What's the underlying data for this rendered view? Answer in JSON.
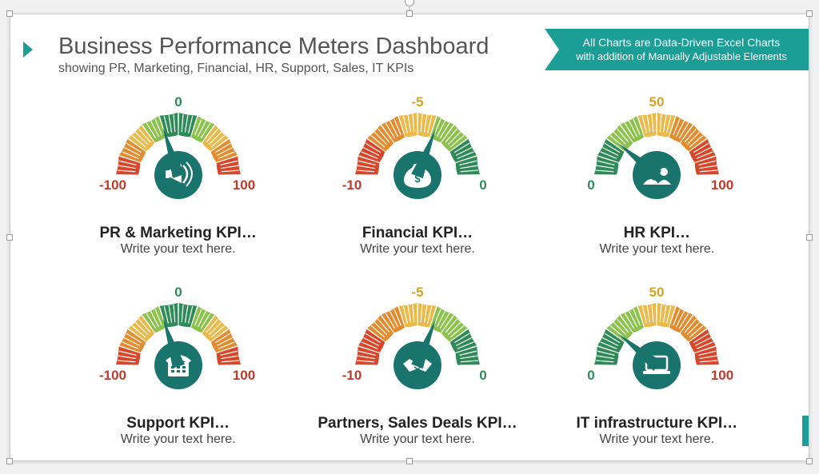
{
  "header": {
    "title": "Business Performance Meters Dashboard",
    "subtitle": "showing PR, Marketing, Financial, HR, Support, Sales, IT KPIs"
  },
  "ribbon": {
    "line1": "All Charts are Data-Driven Excel Charts",
    "line2": "with addition of Manually Adjustable Elements"
  },
  "palette": {
    "teal": "#1a746e",
    "seg_red": "#d9472b",
    "seg_orange": "#e38b2f",
    "seg_yellow": "#e9b949",
    "seg_ltgreen": "#8bc34a",
    "seg_green": "#2e8b57",
    "label_red": "#c0392b",
    "label_orange": "#cf7a1f",
    "label_yellow": "#d4a420",
    "label_green": "#2e8b57"
  },
  "gauges": [
    {
      "id": "pr-marketing",
      "title": "PR & Marketing KPI…",
      "subtitle": "Write your text here.",
      "min": -100,
      "max": 100,
      "top_label": "0",
      "top_label_color": "#2e8b57",
      "left_label": "-100",
      "left_label_color": "#c0392b",
      "right_label": "100",
      "right_label_color": "#c0392b",
      "needle_pct": 0.4,
      "segments_lr": [
        "red",
        "orange",
        "yellow",
        "ltgreen",
        "green",
        "green",
        "ltgreen",
        "yellow",
        "orange",
        "red"
      ],
      "icon": "megaphone"
    },
    {
      "id": "financial",
      "title": "Financial KPI…",
      "subtitle": "Write your text here.",
      "min": -10,
      "max": 0,
      "top_label": "-5",
      "top_label_color": "#d4a420",
      "left_label": "-10",
      "left_label_color": "#c0392b",
      "right_label": "0",
      "right_label_color": "#2e8b57",
      "needle_pct": 0.62,
      "segments_lr": [
        "red",
        "red",
        "orange",
        "orange",
        "yellow",
        "yellow",
        "ltgreen",
        "ltgreen",
        "green",
        "green"
      ],
      "icon": "moneybag"
    },
    {
      "id": "hr",
      "title": "HR KPI…",
      "subtitle": "Write your text here.",
      "min": 0,
      "max": 100,
      "top_label": "50",
      "top_label_color": "#d4a420",
      "left_label": "0",
      "left_label_color": "#2e8b57",
      "right_label": "100",
      "right_label_color": "#c0392b",
      "needle_pct": 0.22,
      "segments_lr": [
        "green",
        "green",
        "ltgreen",
        "ltgreen",
        "yellow",
        "yellow",
        "orange",
        "orange",
        "red",
        "red"
      ],
      "icon": "people"
    },
    {
      "id": "support",
      "title": "Support KPI…",
      "subtitle": "Write your text here.",
      "min": -100,
      "max": 100,
      "top_label": "0",
      "top_label_color": "#2e8b57",
      "left_label": "-100",
      "left_label_color": "#c0392b",
      "right_label": "100",
      "right_label_color": "#c0392b",
      "needle_pct": 0.4,
      "segments_lr": [
        "red",
        "orange",
        "yellow",
        "ltgreen",
        "green",
        "green",
        "ltgreen",
        "yellow",
        "orange",
        "red"
      ],
      "icon": "phone"
    },
    {
      "id": "partners-sales",
      "title": "Partners, Sales Deals KPI…",
      "subtitle": "Write your text here.",
      "min": -10,
      "max": 0,
      "top_label": "-5",
      "top_label_color": "#d4a420",
      "left_label": "-10",
      "left_label_color": "#c0392b",
      "right_label": "0",
      "right_label_color": "#2e8b57",
      "needle_pct": 0.62,
      "segments_lr": [
        "red",
        "red",
        "orange",
        "orange",
        "yellow",
        "yellow",
        "ltgreen",
        "ltgreen",
        "green",
        "green"
      ],
      "icon": "handshake"
    },
    {
      "id": "it",
      "title": "IT infrastructure KPI…",
      "subtitle": "Write your text here.",
      "min": 0,
      "max": 100,
      "top_label": "50",
      "top_label_color": "#d4a420",
      "left_label": "0",
      "left_label_color": "#2e8b57",
      "right_label": "100",
      "right_label_color": "#c0392b",
      "needle_pct": 0.22,
      "segments_lr": [
        "green",
        "green",
        "ltgreen",
        "ltgreen",
        "yellow",
        "yellow",
        "orange",
        "orange",
        "red",
        "red"
      ],
      "icon": "laptop"
    }
  ],
  "gauge_style": {
    "outer_r": 78,
    "inner_r": 50,
    "hub_r": 30,
    "tick_count_per_seg": 3,
    "tick_color": "#ffffff",
    "needle_len": 62
  }
}
